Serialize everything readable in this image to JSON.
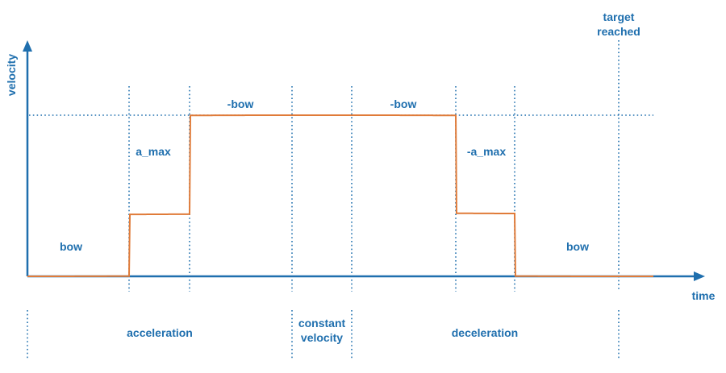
{
  "axes": {
    "y_label": "velocity",
    "x_label": "time"
  },
  "target": {
    "line1": "target",
    "line2": "reached"
  },
  "segment_labels": {
    "bow_start": "bow",
    "a_max": "a_max",
    "neg_bow_left": "-bow",
    "neg_bow_right": "-bow",
    "neg_a_max": "-a_max",
    "bow_end": "bow"
  },
  "phases": {
    "acceleration": "acceleration",
    "constant_line1": "constant",
    "constant_line2": "velocity",
    "deceleration": "deceleration"
  },
  "colors": {
    "accent": "#1f6fae",
    "curve": "#e07b39"
  }
}
